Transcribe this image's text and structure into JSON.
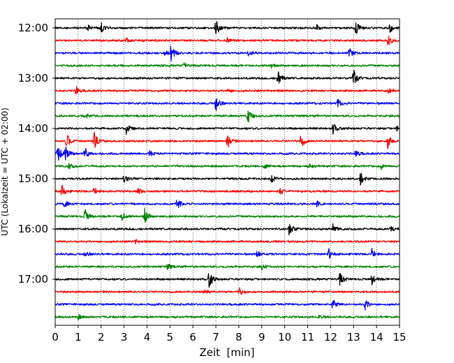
{
  "chart_data": {
    "type": "line",
    "title": "",
    "xlabel": "Zeit  [min]",
    "ylabel": "UTC (Lokalzeit = UTC + 02:00)",
    "xlim": [
      0,
      15
    ],
    "xticks": [
      "0",
      "1",
      "2",
      "3",
      "4",
      "5",
      "6",
      "7",
      "8",
      "9",
      "10",
      "11",
      "12",
      "13",
      "14",
      "15"
    ],
    "yticks": [
      "12:00",
      "13:00",
      "14:00",
      "15:00",
      "16:00",
      "17:00"
    ],
    "grid": "vertical dotted at each minute",
    "trace_colors": [
      "#000000",
      "#ff0000",
      "#0000ff",
      "#008000"
    ],
    "row_interval_min": 15,
    "series": [
      {
        "start": "12:00",
        "color": "#000000",
        "events": [
          [
            1.4,
            0.35
          ],
          [
            2.0,
            0.6
          ],
          [
            7.0,
            1.0
          ],
          [
            11.4,
            0.3
          ],
          [
            13.1,
            0.7
          ],
          [
            14.6,
            0.6
          ]
        ]
      },
      {
        "start": "12:15",
        "color": "#ff0000",
        "events": [
          [
            3.1,
            0.25
          ],
          [
            7.5,
            0.2
          ],
          [
            14.5,
            0.6
          ]
        ]
      },
      {
        "start": "12:30",
        "color": "#0000ff",
        "events": [
          [
            4.8,
            0.3
          ],
          [
            5.05,
            0.9
          ],
          [
            8.4,
            0.3
          ],
          [
            12.8,
            0.6
          ]
        ]
      },
      {
        "start": "12:45",
        "color": "#008000",
        "events": [
          [
            5.6,
            0.3
          ],
          [
            9.4,
            0.25
          ]
        ]
      },
      {
        "start": "13:00",
        "color": "#000000",
        "events": [
          [
            9.7,
            0.9
          ],
          [
            13.0,
            0.9
          ]
        ]
      },
      {
        "start": "13:15",
        "color": "#ff0000",
        "events": [
          [
            0.9,
            0.5
          ],
          [
            7.5,
            0.3
          ],
          [
            14.5,
            0.3
          ]
        ]
      },
      {
        "start": "13:30",
        "color": "#0000ff",
        "events": [
          [
            7.0,
            0.9
          ],
          [
            12.3,
            0.5
          ]
        ]
      },
      {
        "start": "13:45",
        "color": "#008000",
        "events": [
          [
            1.3,
            0.3
          ],
          [
            8.4,
            1.0
          ]
        ]
      },
      {
        "start": "14:00",
        "color": "#000000",
        "events": [
          [
            3.1,
            0.6
          ],
          [
            12.1,
            0.7
          ],
          [
            14.9,
            0.3
          ]
        ]
      },
      {
        "start": "14:15",
        "color": "#ff0000",
        "events": [
          [
            0.5,
            0.9
          ],
          [
            1.7,
            0.9
          ],
          [
            7.5,
            0.9
          ],
          [
            10.7,
            0.9
          ],
          [
            14.5,
            1.0
          ]
        ]
      },
      {
        "start": "14:30",
        "color": "#0000ff",
        "events": [
          [
            0.1,
            1.0
          ],
          [
            0.45,
            0.9
          ],
          [
            1.3,
            0.7
          ],
          [
            4.1,
            0.35
          ],
          [
            13.1,
            0.4
          ]
        ]
      },
      {
        "start": "14:45",
        "color": "#008000",
        "events": [
          [
            0.6,
            0.35
          ],
          [
            9.1,
            0.3
          ],
          [
            11.1,
            0.3
          ],
          [
            14.2,
            0.3
          ]
        ]
      },
      {
        "start": "15:00",
        "color": "#000000",
        "events": [
          [
            3.0,
            0.5
          ],
          [
            9.4,
            0.5
          ],
          [
            13.3,
            0.7
          ]
        ]
      },
      {
        "start": "15:15",
        "color": "#ff0000",
        "events": [
          [
            0.3,
            0.6
          ],
          [
            1.7,
            0.45
          ],
          [
            3.6,
            0.45
          ],
          [
            9.8,
            0.35
          ]
        ]
      },
      {
        "start": "15:30",
        "color": "#0000ff",
        "events": [
          [
            0.4,
            0.4
          ],
          [
            5.3,
            0.7
          ],
          [
            11.4,
            0.3
          ]
        ]
      },
      {
        "start": "15:45",
        "color": "#008000",
        "events": [
          [
            1.3,
            0.8
          ],
          [
            2.9,
            0.7
          ],
          [
            3.9,
            0.9
          ]
        ]
      },
      {
        "start": "16:00",
        "color": "#000000",
        "events": [
          [
            10.2,
            0.8
          ],
          [
            12.1,
            0.6
          ],
          [
            14.6,
            0.4
          ]
        ]
      },
      {
        "start": "16:15",
        "color": "#ff0000",
        "events": [
          [
            3.5,
            0.2
          ]
        ]
      },
      {
        "start": "16:30",
        "color": "#0000ff",
        "events": [
          [
            1.3,
            0.3
          ],
          [
            8.8,
            0.35
          ],
          [
            11.9,
            0.6
          ],
          [
            13.8,
            0.55
          ]
        ]
      },
      {
        "start": "16:45",
        "color": "#008000",
        "events": [
          [
            4.9,
            0.35
          ],
          [
            9.0,
            0.3
          ]
        ]
      },
      {
        "start": "17:00",
        "color": "#000000",
        "events": [
          [
            6.7,
            1.0
          ],
          [
            12.4,
            0.7
          ],
          [
            13.8,
            0.6
          ]
        ]
      },
      {
        "start": "17:15",
        "color": "#ff0000",
        "events": [
          [
            6.5,
            0.25
          ],
          [
            8.0,
            0.5
          ]
        ]
      },
      {
        "start": "17:30",
        "color": "#0000ff",
        "events": [
          [
            12.1,
            0.7
          ],
          [
            13.5,
            0.6
          ]
        ]
      },
      {
        "start": "17:45",
        "color": "#008000",
        "events": [
          [
            1.0,
            0.25
          ],
          [
            11.5,
            0.2
          ]
        ]
      }
    ]
  }
}
